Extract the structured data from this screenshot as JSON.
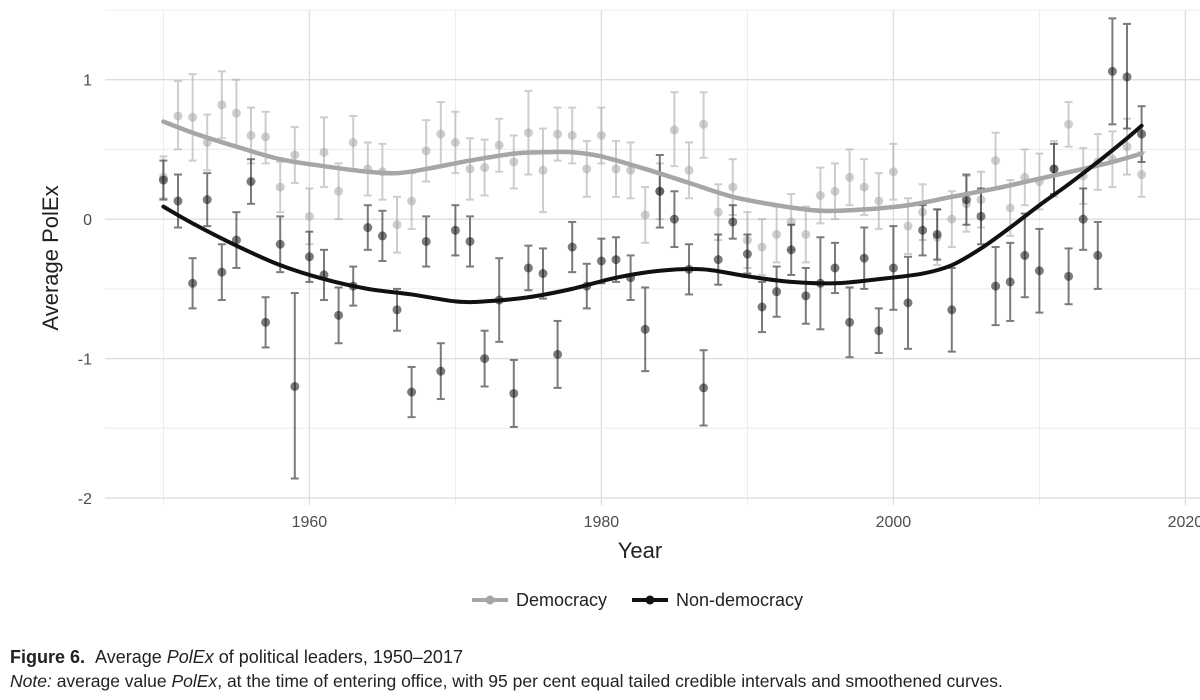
{
  "chart_data": {
    "type": "line",
    "title": "",
    "xlabel": "Year",
    "ylabel": "Average PolEx",
    "xlim": [
      1946,
      2021
    ],
    "ylim": [
      -2.05,
      1.5
    ],
    "xticks": [
      1960,
      1980,
      2000,
      2020
    ],
    "yticks": [
      -2,
      -1,
      0,
      1
    ],
    "legend": {
      "position": "bottom",
      "entries": [
        "Democracy",
        "Non-democracy"
      ]
    },
    "grid": true,
    "series": [
      {
        "name": "Democracy",
        "color": "#a6a6a6",
        "points": [
          [
            1950,
            0.3,
            0.15,
            0.45
          ],
          [
            1951,
            0.74,
            0.5,
            0.99
          ],
          [
            1952,
            0.73,
            0.42,
            1.04
          ],
          [
            1953,
            0.55,
            0.35,
            0.75
          ],
          [
            1954,
            0.82,
            0.58,
            1.06
          ],
          [
            1955,
            0.76,
            0.52,
            1.0
          ],
          [
            1956,
            0.6,
            0.4,
            0.8
          ],
          [
            1957,
            0.59,
            0.4,
            0.77
          ],
          [
            1958,
            0.23,
            0.05,
            0.41
          ],
          [
            1959,
            0.46,
            0.26,
            0.66
          ],
          [
            1960,
            0.02,
            -0.18,
            0.22
          ],
          [
            1961,
            0.48,
            0.23,
            0.73
          ],
          [
            1962,
            0.2,
            0.0,
            0.4
          ],
          [
            1963,
            0.55,
            0.36,
            0.74
          ],
          [
            1964,
            0.36,
            0.17,
            0.55
          ],
          [
            1965,
            0.34,
            0.14,
            0.54
          ],
          [
            1966,
            -0.04,
            -0.24,
            0.16
          ],
          [
            1967,
            0.13,
            -0.07,
            0.33
          ],
          [
            1968,
            0.49,
            0.27,
            0.71
          ],
          [
            1969,
            0.61,
            0.38,
            0.84
          ],
          [
            1970,
            0.55,
            0.33,
            0.77
          ],
          [
            1971,
            0.36,
            0.14,
            0.58
          ],
          [
            1972,
            0.37,
            0.17,
            0.57
          ],
          [
            1973,
            0.53,
            0.34,
            0.72
          ],
          [
            1974,
            0.41,
            0.22,
            0.6
          ],
          [
            1975,
            0.62,
            0.32,
            0.92
          ],
          [
            1976,
            0.35,
            0.05,
            0.65
          ],
          [
            1977,
            0.61,
            0.42,
            0.8
          ],
          [
            1978,
            0.6,
            0.4,
            0.8
          ],
          [
            1979,
            0.36,
            0.16,
            0.56
          ],
          [
            1980,
            0.6,
            0.4,
            0.8
          ],
          [
            1981,
            0.36,
            0.16,
            0.56
          ],
          [
            1982,
            0.35,
            0.15,
            0.55
          ],
          [
            1983,
            0.03,
            -0.17,
            0.23
          ],
          [
            1984,
            0.2,
            0.0,
            0.4
          ],
          [
            1985,
            0.64,
            0.38,
            0.91
          ],
          [
            1986,
            0.35,
            0.15,
            0.55
          ],
          [
            1987,
            0.68,
            0.44,
            0.91
          ],
          [
            1988,
            0.05,
            -0.15,
            0.25
          ],
          [
            1989,
            0.23,
            0.03,
            0.43
          ],
          [
            1990,
            -0.15,
            -0.35,
            0.05
          ],
          [
            1991,
            -0.2,
            -0.4,
            0.0
          ],
          [
            1992,
            -0.11,
            -0.31,
            0.09
          ],
          [
            1993,
            -0.02,
            -0.22,
            0.18
          ],
          [
            1994,
            -0.11,
            -0.31,
            0.09
          ],
          [
            1995,
            0.17,
            -0.03,
            0.37
          ],
          [
            1996,
            0.2,
            0.0,
            0.4
          ],
          [
            1997,
            0.3,
            0.1,
            0.5
          ],
          [
            1998,
            0.23,
            0.03,
            0.43
          ],
          [
            1999,
            0.13,
            -0.07,
            0.33
          ],
          [
            2000,
            0.34,
            0.14,
            0.54
          ],
          [
            2001,
            -0.05,
            -0.25,
            0.15
          ],
          [
            2002,
            0.05,
            -0.15,
            0.25
          ],
          [
            2003,
            -0.13,
            -0.33,
            0.07
          ],
          [
            2004,
            0.0,
            -0.2,
            0.2
          ],
          [
            2005,
            0.11,
            -0.09,
            0.31
          ],
          [
            2006,
            0.14,
            -0.06,
            0.34
          ],
          [
            2007,
            0.42,
            0.22,
            0.62
          ],
          [
            2008,
            0.08,
            -0.12,
            0.28
          ],
          [
            2009,
            0.3,
            0.1,
            0.5
          ],
          [
            2010,
            0.27,
            0.07,
            0.47
          ],
          [
            2011,
            0.36,
            0.16,
            0.56
          ],
          [
            2012,
            0.68,
            0.52,
            0.84
          ],
          [
            2013,
            0.31,
            0.11,
            0.51
          ],
          [
            2014,
            0.41,
            0.21,
            0.61
          ],
          [
            2015,
            0.43,
            0.23,
            0.63
          ],
          [
            2016,
            0.52,
            0.32,
            0.72
          ],
          [
            2017,
            0.32,
            0.16,
            0.48
          ]
        ],
        "smooth": [
          [
            1950,
            0.7
          ],
          [
            1952,
            0.62
          ],
          [
            1955,
            0.52
          ],
          [
            1958,
            0.43
          ],
          [
            1961,
            0.38
          ],
          [
            1964,
            0.34
          ],
          [
            1966,
            0.33
          ],
          [
            1968,
            0.36
          ],
          [
            1971,
            0.42
          ],
          [
            1974,
            0.47
          ],
          [
            1976,
            0.48
          ],
          [
            1978,
            0.48
          ],
          [
            1980,
            0.45
          ],
          [
            1983,
            0.36
          ],
          [
            1986,
            0.26
          ],
          [
            1989,
            0.16
          ],
          [
            1992,
            0.1
          ],
          [
            1995,
            0.06
          ],
          [
            1998,
            0.07
          ],
          [
            2001,
            0.1
          ],
          [
            2004,
            0.16
          ],
          [
            2007,
            0.22
          ],
          [
            2010,
            0.29
          ],
          [
            2013,
            0.36
          ],
          [
            2015,
            0.41
          ],
          [
            2017,
            0.47
          ]
        ]
      },
      {
        "name": "Non-democracy",
        "color": "#111111",
        "points": [
          [
            1950,
            0.28,
            0.14,
            0.42
          ],
          [
            1951,
            0.13,
            -0.06,
            0.32
          ],
          [
            1952,
            -0.46,
            -0.64,
            -0.28
          ],
          [
            1953,
            0.14,
            -0.05,
            0.33
          ],
          [
            1954,
            -0.38,
            -0.58,
            -0.18
          ],
          [
            1955,
            -0.15,
            -0.35,
            0.05
          ],
          [
            1956,
            0.27,
            0.11,
            0.43
          ],
          [
            1957,
            -0.74,
            -0.92,
            -0.56
          ],
          [
            1959,
            -1.2,
            -1.86,
            -0.53
          ],
          [
            1958,
            -0.18,
            -0.38,
            0.02
          ],
          [
            1960,
            -0.27,
            -0.45,
            -0.09
          ],
          [
            1961,
            -0.4,
            -0.58,
            -0.22
          ],
          [
            1962,
            -0.69,
            -0.89,
            -0.49
          ],
          [
            1963,
            -0.48,
            -0.62,
            -0.34
          ],
          [
            1964,
            -0.06,
            -0.22,
            0.1
          ],
          [
            1965,
            -0.12,
            -0.3,
            0.06
          ],
          [
            1966,
            -0.65,
            -0.8,
            -0.5
          ],
          [
            1967,
            -1.24,
            -1.42,
            -1.06
          ],
          [
            1968,
            -0.16,
            -0.34,
            0.02
          ],
          [
            1969,
            -1.09,
            -1.29,
            -0.89
          ],
          [
            1970,
            -0.08,
            -0.26,
            0.1
          ],
          [
            1971,
            -0.16,
            -0.34,
            0.02
          ],
          [
            1972,
            -1.0,
            -1.2,
            -0.8
          ],
          [
            1973,
            -0.58,
            -0.88,
            -0.28
          ],
          [
            1974,
            -1.25,
            -1.49,
            -1.01
          ],
          [
            1975,
            -0.35,
            -0.51,
            -0.19
          ],
          [
            1976,
            -0.39,
            -0.57,
            -0.21
          ],
          [
            1977,
            -0.97,
            -1.21,
            -0.73
          ],
          [
            1978,
            -0.2,
            -0.38,
            -0.02
          ],
          [
            1979,
            -0.48,
            -0.64,
            -0.32
          ],
          [
            1980,
            -0.3,
            -0.46,
            -0.14
          ],
          [
            1981,
            -0.29,
            -0.45,
            -0.13
          ],
          [
            1982,
            -0.42,
            -0.58,
            -0.26
          ],
          [
            1983,
            -0.79,
            -1.09,
            -0.49
          ],
          [
            1984,
            0.2,
            -0.06,
            0.46
          ],
          [
            1985,
            0.0,
            -0.2,
            0.2
          ],
          [
            1986,
            -0.36,
            -0.54,
            -0.18
          ],
          [
            1987,
            -1.21,
            -1.48,
            -0.94
          ],
          [
            1988,
            -0.29,
            -0.47,
            -0.11
          ],
          [
            1989,
            -0.02,
            -0.14,
            0.1
          ],
          [
            1990,
            -0.25,
            -0.39,
            -0.11
          ],
          [
            1991,
            -0.63,
            -0.81,
            -0.45
          ],
          [
            1992,
            -0.52,
            -0.7,
            -0.34
          ],
          [
            1993,
            -0.22,
            -0.4,
            -0.04
          ],
          [
            1994,
            -0.55,
            -0.75,
            -0.35
          ],
          [
            1995,
            -0.46,
            -0.79,
            -0.13
          ],
          [
            1996,
            -0.35,
            -0.53,
            -0.17
          ],
          [
            1997,
            -0.74,
            -0.99,
            -0.49
          ],
          [
            1998,
            -0.28,
            -0.5,
            -0.06
          ],
          [
            1999,
            -0.8,
            -0.96,
            -0.64
          ],
          [
            2000,
            -0.35,
            -0.65,
            -0.05
          ],
          [
            2001,
            -0.6,
            -0.93,
            -0.27
          ],
          [
            2002,
            -0.08,
            -0.26,
            0.1
          ],
          [
            2003,
            -0.11,
            -0.29,
            0.07
          ],
          [
            2004,
            -0.65,
            -0.95,
            -0.35
          ],
          [
            2005,
            0.14,
            -0.04,
            0.32
          ],
          [
            2006,
            0.02,
            -0.18,
            0.22
          ],
          [
            2007,
            -0.48,
            -0.76,
            -0.2
          ],
          [
            2008,
            -0.45,
            -0.73,
            -0.17
          ],
          [
            2009,
            -0.26,
            -0.56,
            0.04
          ],
          [
            2010,
            -0.37,
            -0.67,
            -0.07
          ],
          [
            2011,
            0.36,
            0.18,
            0.54
          ],
          [
            2012,
            -0.41,
            -0.61,
            -0.21
          ],
          [
            2013,
            0.0,
            -0.22,
            0.22
          ],
          [
            2014,
            -0.26,
            -0.5,
            -0.02
          ],
          [
            2015,
            1.06,
            0.68,
            1.44
          ],
          [
            2016,
            1.02,
            0.65,
            1.4
          ],
          [
            2017,
            0.61,
            0.41,
            0.81
          ]
        ],
        "smooth": [
          [
            1950,
            0.09
          ],
          [
            1952,
            -0.03
          ],
          [
            1955,
            -0.19
          ],
          [
            1958,
            -0.33
          ],
          [
            1961,
            -0.43
          ],
          [
            1964,
            -0.5
          ],
          [
            1967,
            -0.54
          ],
          [
            1970,
            -0.59
          ],
          [
            1972,
            -0.59
          ],
          [
            1975,
            -0.56
          ],
          [
            1978,
            -0.5
          ],
          [
            1981,
            -0.42
          ],
          [
            1984,
            -0.37
          ],
          [
            1987,
            -0.36
          ],
          [
            1990,
            -0.41
          ],
          [
            1993,
            -0.45
          ],
          [
            1996,
            -0.46
          ],
          [
            1999,
            -0.43
          ],
          [
            2002,
            -0.39
          ],
          [
            2004,
            -0.33
          ],
          [
            2006,
            -0.21
          ],
          [
            2008,
            -0.06
          ],
          [
            2010,
            0.1
          ],
          [
            2012,
            0.25
          ],
          [
            2014,
            0.41
          ],
          [
            2016,
            0.58
          ],
          [
            2017,
            0.67
          ]
        ]
      }
    ]
  },
  "caption": {
    "figure_label": "Figure 6.",
    "title_pre": "Average ",
    "title_italic": "PolEx",
    "title_post": " of political leaders, 1950–2017",
    "note_label": "Note:",
    "note_pre": " average value ",
    "note_italic": "PolEx",
    "note_post": ", at the time of entering office, with 95 per cent equal tailed credible intervals and smoothened curves."
  }
}
